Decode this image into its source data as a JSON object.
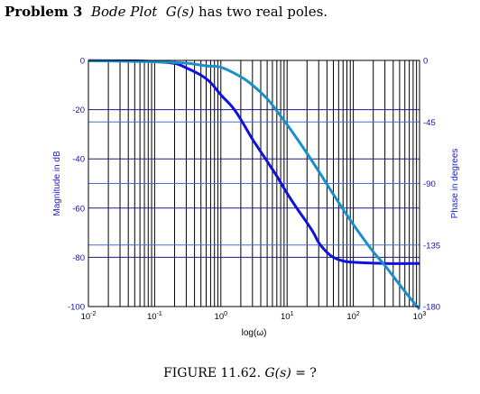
{
  "heading": {
    "problem": "Problem 3",
    "topic": "Bode Plot",
    "func": "G(s)",
    "rest": "has two real poles."
  },
  "caption": {
    "prefix": "FIGURE 11.62.",
    "func": "G(s)",
    "rest": "= ?"
  },
  "chart_data": {
    "type": "line",
    "title": "",
    "xlabel": "log(ω)",
    "ylabel": "Magnitude in dB",
    "ylabel_right": "Phase in degrees",
    "x_scale": "log",
    "xlim": [
      0.01,
      1000
    ],
    "ylim": [
      -100,
      0
    ],
    "y2lim": [
      -180,
      0
    ],
    "x_ticks": [
      {
        "base": "10",
        "exp": "-2"
      },
      {
        "base": "10",
        "exp": "-1"
      },
      {
        "base": "10",
        "exp": "0"
      },
      {
        "base": "10",
        "exp": "1"
      },
      {
        "base": "10",
        "exp": "2"
      },
      {
        "base": "10",
        "exp": "3"
      }
    ],
    "y_ticks": [
      "0",
      "-20",
      "-40",
      "-60",
      "-80",
      "-100"
    ],
    "y2_ticks": [
      "0",
      "-45",
      "-90",
      "-135",
      "-180"
    ],
    "grid": true,
    "series": [
      {
        "axis": "left",
        "color": "#1010e0",
        "points": [
          [
            0.01,
            -0.1
          ],
          [
            0.05,
            -0.2
          ],
          [
            0.1,
            -0.5
          ],
          [
            0.2,
            -1.2
          ],
          [
            0.3,
            -3
          ],
          [
            0.5,
            -6
          ],
          [
            0.7,
            -9
          ],
          [
            1,
            -14
          ],
          [
            1.5,
            -19
          ],
          [
            2,
            -24
          ],
          [
            3,
            -32
          ],
          [
            5,
            -41
          ],
          [
            7,
            -47
          ],
          [
            10,
            -54
          ],
          [
            14,
            -60
          ],
          [
            20,
            -66
          ],
          [
            25,
            -70
          ],
          [
            30,
            -74
          ],
          [
            40,
            -78
          ],
          [
            50,
            -80
          ],
          [
            70,
            -81.5
          ],
          [
            100,
            -82
          ],
          [
            300,
            -82.5
          ],
          [
            1000,
            -82.5
          ]
        ]
      },
      {
        "axis": "right",
        "color": "#1a8fc8",
        "points": [
          [
            0.01,
            -0.2
          ],
          [
            0.1,
            -1
          ],
          [
            0.3,
            -2
          ],
          [
            0.6,
            -4
          ],
          [
            1,
            -5
          ],
          [
            2,
            -12
          ],
          [
            3,
            -18
          ],
          [
            5,
            -28
          ],
          [
            7,
            -37
          ],
          [
            10,
            -47
          ],
          [
            20,
            -68
          ],
          [
            30,
            -81
          ],
          [
            50,
            -98
          ],
          [
            100,
            -120
          ],
          [
            200,
            -140
          ],
          [
            300,
            -150
          ],
          [
            500,
            -164
          ],
          [
            700,
            -173
          ],
          [
            1000,
            -182
          ]
        ]
      }
    ]
  }
}
